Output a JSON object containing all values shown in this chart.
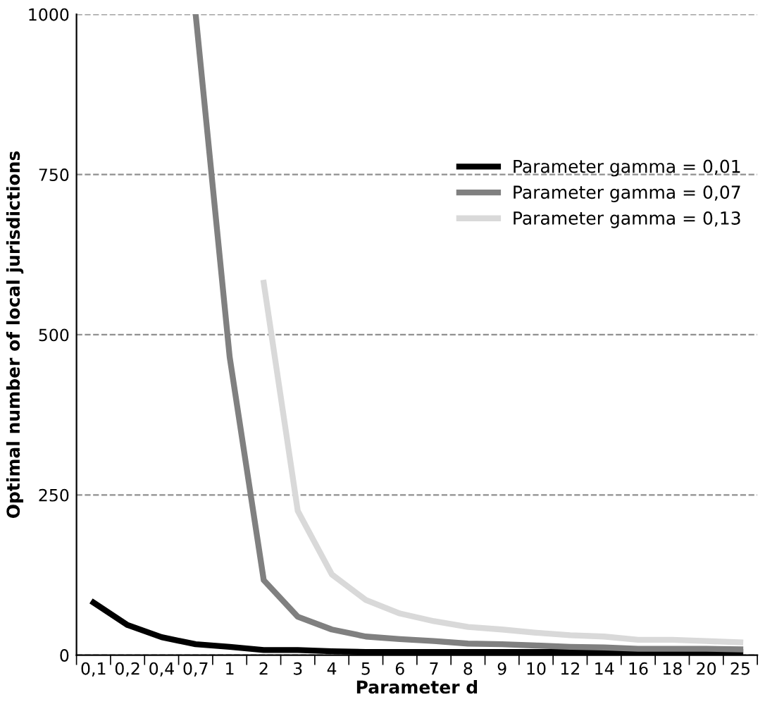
{
  "chart_data": {
    "type": "line",
    "xlabel": "Parameter d",
    "ylabel": "Optimal number of local jurisdictions",
    "categories": [
      "0,1",
      "0,2",
      "0,4",
      "0,7",
      "1",
      "2",
      "3",
      "4",
      "5",
      "6",
      "7",
      "8",
      "9",
      "10",
      "12",
      "14",
      "16",
      "18",
      "20",
      "25"
    ],
    "series": [
      {
        "name": "Parameter gamma = 0,01",
        "color": "#000000",
        "values": [
          82,
          47,
          28,
          17,
          13,
          8,
          8,
          6,
          5,
          5,
          5,
          5,
          5,
          5,
          5,
          5,
          5,
          5,
          5,
          5
        ]
      },
      {
        "name": "Parameter gamma = 0,07",
        "color": "#808080",
        "values": [
          null,
          null,
          null,
          1000,
          465,
          117,
          60,
          40,
          29,
          25,
          22,
          18,
          17,
          15,
          13,
          12,
          10,
          10,
          10,
          9
        ]
      },
      {
        "name": "Parameter gamma = 0,13",
        "color": "#d9d9d9",
        "values": [
          null,
          null,
          null,
          null,
          null,
          581,
          225,
          126,
          86,
          65,
          53,
          44,
          40,
          35,
          31,
          29,
          24,
          24,
          22,
          20
        ]
      }
    ],
    "ylim": [
      0,
      1000
    ],
    "yticks": [
      0,
      250,
      500,
      750,
      1000
    ],
    "grid": "y",
    "legend": "right",
    "marker": "none",
    "line_style": "solid"
  }
}
